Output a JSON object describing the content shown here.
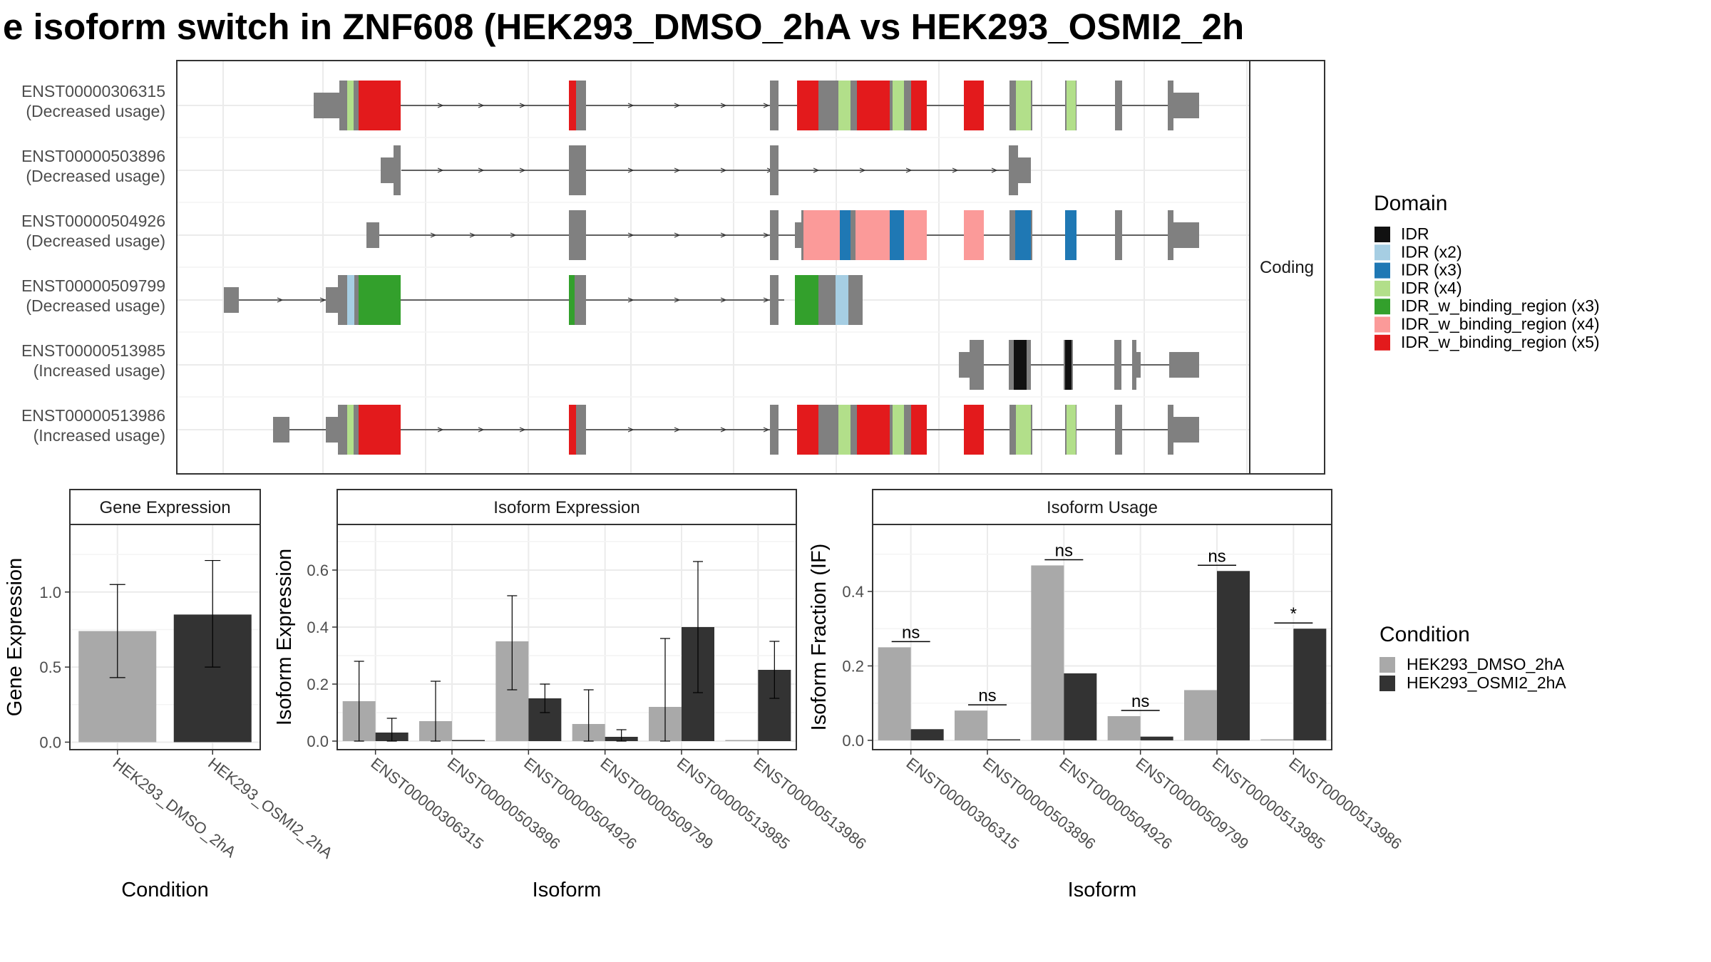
{
  "title": "e isoform switch in ZNF608 (HEK293_DMSO_2hA vs HEK293_OSMI2_2h",
  "colors": {
    "dmso": "#a9a9a9",
    "osmi": "#333333",
    "exon": "#808080",
    "grid": "#ebebeb"
  },
  "chart_data": [
    {
      "type": "gene-structure",
      "name": "transcript-structure",
      "facet_label": "Coding",
      "transcripts": [
        {
          "id": "ENST00000306315",
          "usage": "(Decreased usage)"
        },
        {
          "id": "ENST00000503896",
          "usage": "(Decreased usage)"
        },
        {
          "id": "ENST00000504926",
          "usage": "(Decreased usage)"
        },
        {
          "id": "ENST00000509799",
          "usage": "(Decreased usage)"
        },
        {
          "id": "ENST00000513985",
          "usage": "(Increased usage)"
        },
        {
          "id": "ENST00000513986",
          "usage": "(Increased usage)"
        }
      ],
      "legend": {
        "title": "Domain",
        "entries": [
          {
            "label": "IDR",
            "color": "#111111"
          },
          {
            "label": "IDR (x2)",
            "color": "#a6cee3"
          },
          {
            "label": "IDR (x3)",
            "color": "#1f78b4"
          },
          {
            "label": "IDR (x4)",
            "color": "#b2df8a"
          },
          {
            "label": "IDR_w_binding_region (x3)",
            "color": "#33a02c"
          },
          {
            "label": "IDR_w_binding_region (x4)",
            "color": "#fb9a99"
          },
          {
            "label": "IDR_w_binding_region (x5)",
            "color": "#e31a1c"
          }
        ]
      }
    },
    {
      "type": "bar",
      "name": "gene-expression",
      "facet_label": "Gene Expression",
      "xlabel": "Condition",
      "ylabel": "Gene Expression",
      "categories": [
        "HEK293_DMSO_2hA",
        "HEK293_OSMI2_2hA"
      ],
      "values": [
        0.74,
        0.85
      ],
      "err_low": [
        0.43,
        0.5
      ],
      "err_high": [
        1.05,
        1.21
      ],
      "ylim": [
        -0.05,
        1.45
      ],
      "yticks": [
        "0.0",
        "0.5",
        "1.0"
      ],
      "grid": true
    },
    {
      "type": "bar",
      "name": "isoform-expression",
      "facet_label": "Isoform Expression",
      "xlabel": "Isoform",
      "ylabel": "Isoform Expression",
      "categories": [
        "ENST00000306315",
        "ENST00000503896",
        "ENST00000504926",
        "ENST00000509799",
        "ENST00000513985",
        "ENST00000513986"
      ],
      "series": [
        {
          "values": [
            0.14,
            0.07,
            0.35,
            0.06,
            0.12,
            0.0
          ],
          "err_low": [
            0.0,
            0.0,
            0.18,
            0.0,
            0.0,
            0.0
          ],
          "err_high": [
            0.28,
            0.21,
            0.51,
            0.18,
            0.36,
            0.0
          ]
        },
        {
          "values": [
            0.03,
            0.0,
            0.15,
            0.015,
            0.4,
            0.25
          ],
          "err_low": [
            0.0,
            0.0,
            0.1,
            0.0,
            0.17,
            0.15
          ],
          "err_high": [
            0.08,
            0.0,
            0.2,
            0.04,
            0.63,
            0.35
          ]
        }
      ],
      "ylim": [
        -0.03,
        0.76
      ],
      "yticks": [
        "0.0",
        "0.2",
        "0.4",
        "0.6"
      ],
      "grid": true
    },
    {
      "type": "bar",
      "name": "isoform-usage",
      "facet_label": "Isoform Usage",
      "xlabel": "Isoform",
      "ylabel": "Isoform Fraction (IF)",
      "categories": [
        "ENST00000306315",
        "ENST00000503896",
        "ENST00000504926",
        "ENST00000509799",
        "ENST00000513985",
        "ENST00000513986"
      ],
      "series": [
        {
          "values": [
            0.25,
            0.08,
            0.47,
            0.065,
            0.135,
            0.0
          ]
        },
        {
          "values": [
            0.03,
            0.0,
            0.18,
            0.01,
            0.455,
            0.3
          ]
        }
      ],
      "significance": [
        "ns",
        "ns",
        "ns",
        "ns",
        "ns",
        "*"
      ],
      "ylim": [
        -0.025,
        0.58
      ],
      "yticks": [
        "0.0",
        "0.2",
        "0.4"
      ],
      "grid": true
    }
  ],
  "condition_legend": {
    "title": "Condition",
    "entries": [
      "HEK293_DMSO_2hA",
      "HEK293_OSMI2_2hA"
    ]
  }
}
